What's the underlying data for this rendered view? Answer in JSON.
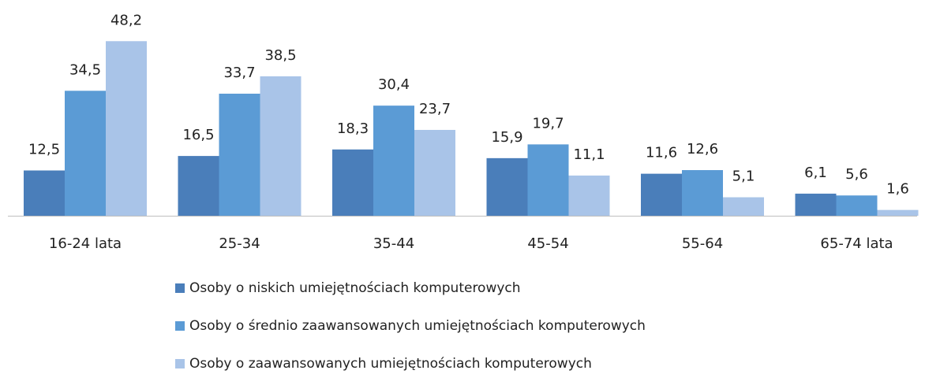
{
  "chart_data": {
    "type": "bar",
    "categories": [
      "16-24 lata",
      "25-34",
      "35-44",
      "45-54",
      "55-64",
      "65-74 lata"
    ],
    "series": [
      {
        "name": "Osoby o niskich umiejętnościach komputerowych",
        "color": "#4a7eba",
        "values": [
          12.5,
          16.5,
          18.3,
          15.9,
          11.6,
          6.1
        ],
        "value_labels": [
          "12,5",
          "16,5",
          "18,3",
          "15,9",
          "11,6",
          "6,1"
        ]
      },
      {
        "name": "Osoby o średnio zaawansowanych umiejętnościach komputerowych",
        "color": "#5b9bd5",
        "values": [
          34.5,
          33.7,
          30.4,
          19.7,
          12.6,
          5.6
        ],
        "value_labels": [
          "34,5",
          "33,7",
          "30,4",
          "19,7",
          "12,6",
          "5,6"
        ]
      },
      {
        "name": "Osoby o zaawansowanych umiejętnościach komputerowych",
        "color": "#a9c4e8",
        "values": [
          48.2,
          38.5,
          23.7,
          11.1,
          5.1,
          1.6
        ],
        "value_labels": [
          "48,2",
          "38,5",
          "23,7",
          "11,1",
          "5,1",
          "1,6"
        ]
      }
    ]
  }
}
